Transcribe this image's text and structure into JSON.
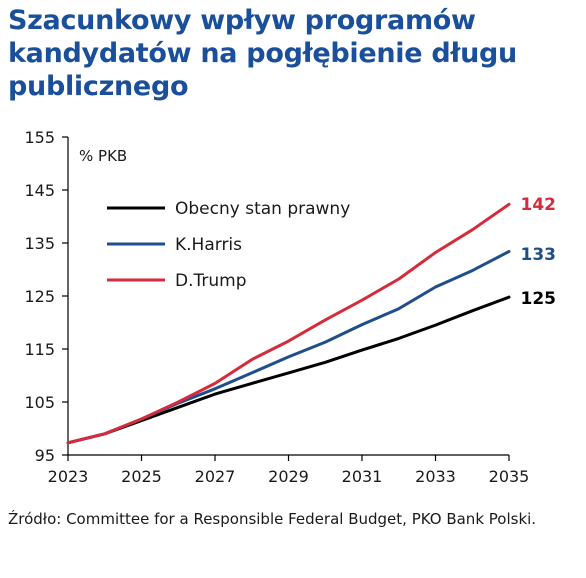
{
  "title": "Szacunkowy wpływ programów kandydatów na pogłębienie długu publicznego",
  "source": "Źródło: Committee for a Responsible Federal Budget, PKO Bank Polski.",
  "colors": {
    "title": "#1a4f9c",
    "axis": "#000000"
  },
  "chart_data": {
    "type": "line",
    "title": "Szacunkowy wpływ programów kandydatów na pogłębienie długu publicznego",
    "ylabel": "% PKB",
    "xlabel": "",
    "ylim": [
      95,
      155
    ],
    "xlim": [
      2023,
      2035
    ],
    "yticks": [
      "155",
      "145",
      "135",
      "125",
      "115",
      "105",
      "95"
    ],
    "xticks": [
      "2023",
      "2025",
      "2027",
      "2029",
      "2031",
      "2033",
      "2035"
    ],
    "grid": false,
    "legend_position": "top-left",
    "x": [
      2023,
      2024,
      2025,
      2026,
      2027,
      2028,
      2029,
      2030,
      2031,
      2032,
      2033,
      2034,
      2035
    ],
    "series": [
      {
        "name": "Obecny stan prawny",
        "color": "#000000",
        "values": [
          97.3,
          99.0,
          101.5,
          104.0,
          106.5,
          108.5,
          110.5,
          112.5,
          114.8,
          117.0,
          119.5,
          122.2,
          124.8
        ],
        "end_label": "125"
      },
      {
        "name": "K.Harris",
        "color": "#1f4e8c",
        "values": [
          97.3,
          99.0,
          101.8,
          104.8,
          107.5,
          110.5,
          113.5,
          116.3,
          119.6,
          122.6,
          126.7,
          129.8,
          133.4
        ],
        "end_label": "133"
      },
      {
        "name": "D.Trump",
        "color": "#d52b3a",
        "values": [
          97.3,
          99.0,
          101.8,
          105.0,
          108.5,
          113.0,
          116.5,
          120.5,
          124.2,
          128.2,
          133.2,
          137.5,
          142.3
        ],
        "end_label": "142"
      }
    ]
  }
}
